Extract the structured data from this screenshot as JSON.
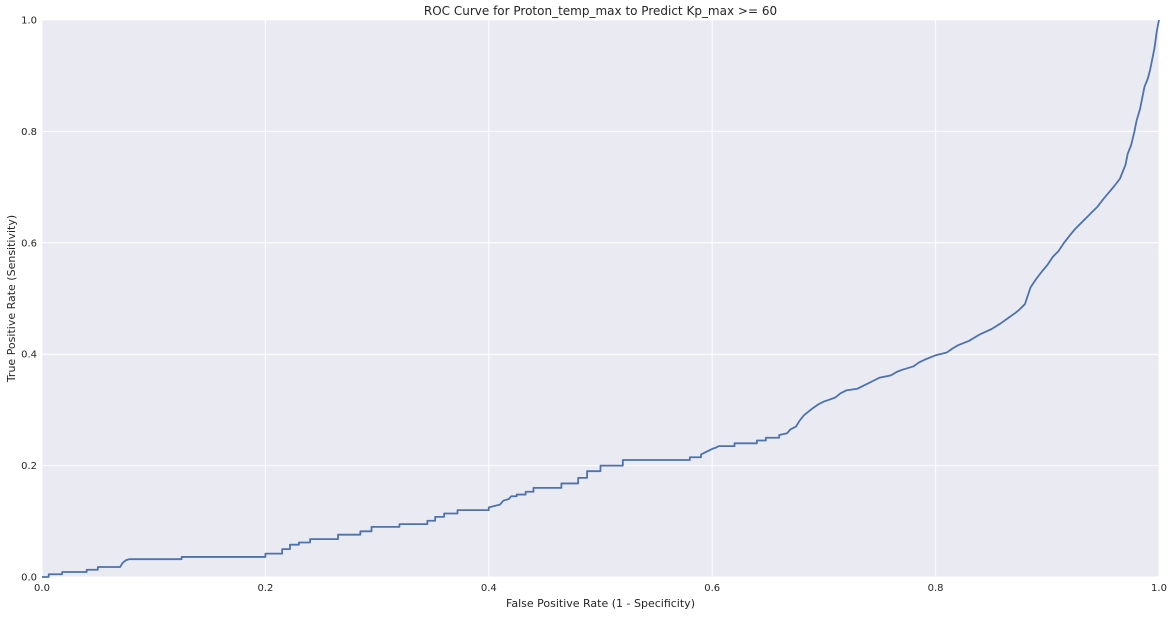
{
  "colors": {
    "plot_background": "#EAEAF2",
    "grid": "#FFFFFF",
    "line": "#4C72B0",
    "text": "#262626"
  },
  "chart_data": {
    "type": "line",
    "title": "ROC Curve for Proton_temp_max to Predict Kp_max >= 60",
    "xlabel": "False Positive Rate (1 - Specificity)",
    "ylabel": "True Positive Rate (Sensitivity)",
    "xlim": [
      0,
      1
    ],
    "ylim": [
      0,
      1
    ],
    "xticks": [
      "0.0",
      "0.2",
      "0.4",
      "0.6",
      "0.8",
      "1.0"
    ],
    "yticks": [
      "0.0",
      "0.2",
      "0.4",
      "0.6",
      "0.8",
      "1.0"
    ],
    "grid": true,
    "series": [
      {
        "x": [
          0.0,
          0.006,
          0.006,
          0.018,
          0.018,
          0.04,
          0.04,
          0.05,
          0.05,
          0.07,
          0.072,
          0.075,
          0.078,
          0.125,
          0.125,
          0.2,
          0.2,
          0.215,
          0.215,
          0.222,
          0.222,
          0.23,
          0.23,
          0.24,
          0.24,
          0.265,
          0.265,
          0.285,
          0.285,
          0.295,
          0.295,
          0.32,
          0.32,
          0.345,
          0.345,
          0.352,
          0.352,
          0.36,
          0.36,
          0.372,
          0.372,
          0.4,
          0.4,
          0.41,
          0.413,
          0.418,
          0.42,
          0.425,
          0.425,
          0.433,
          0.433,
          0.44,
          0.44,
          0.465,
          0.465,
          0.48,
          0.48,
          0.488,
          0.488,
          0.5,
          0.5,
          0.52,
          0.52,
          0.58,
          0.58,
          0.59,
          0.59,
          0.595,
          0.6,
          0.603,
          0.606,
          0.62,
          0.62,
          0.64,
          0.64,
          0.648,
          0.648,
          0.66,
          0.66,
          0.667,
          0.67,
          0.675,
          0.678,
          0.682,
          0.685,
          0.69,
          0.695,
          0.7,
          0.71,
          0.715,
          0.72,
          0.73,
          0.735,
          0.74,
          0.745,
          0.75,
          0.76,
          0.765,
          0.77,
          0.78,
          0.785,
          0.79,
          0.8,
          0.81,
          0.815,
          0.82,
          0.83,
          0.84,
          0.85,
          0.858,
          0.865,
          0.872,
          0.875,
          0.88,
          0.885,
          0.89,
          0.895,
          0.9,
          0.905,
          0.91,
          0.915,
          0.92,
          0.925,
          0.93,
          0.935,
          0.94,
          0.945,
          0.95,
          0.955,
          0.96,
          0.965,
          0.97,
          0.972,
          0.975,
          0.978,
          0.98,
          0.983,
          0.985,
          0.987,
          0.99,
          0.992,
          0.994,
          0.996,
          0.998,
          1.0
        ],
        "y": [
          0.0,
          0.0,
          0.005,
          0.005,
          0.009,
          0.009,
          0.013,
          0.013,
          0.018,
          0.018,
          0.025,
          0.03,
          0.032,
          0.032,
          0.036,
          0.036,
          0.042,
          0.042,
          0.05,
          0.05,
          0.058,
          0.058,
          0.062,
          0.062,
          0.068,
          0.068,
          0.076,
          0.076,
          0.082,
          0.082,
          0.09,
          0.09,
          0.095,
          0.095,
          0.101,
          0.101,
          0.108,
          0.108,
          0.114,
          0.114,
          0.12,
          0.12,
          0.125,
          0.13,
          0.137,
          0.14,
          0.145,
          0.145,
          0.148,
          0.148,
          0.153,
          0.153,
          0.16,
          0.16,
          0.168,
          0.168,
          0.178,
          0.178,
          0.19,
          0.19,
          0.2,
          0.2,
          0.21,
          0.21,
          0.215,
          0.215,
          0.22,
          0.225,
          0.23,
          0.232,
          0.235,
          0.235,
          0.24,
          0.24,
          0.245,
          0.245,
          0.25,
          0.25,
          0.255,
          0.258,
          0.265,
          0.27,
          0.28,
          0.29,
          0.295,
          0.303,
          0.31,
          0.315,
          0.322,
          0.33,
          0.335,
          0.338,
          0.343,
          0.348,
          0.353,
          0.358,
          0.362,
          0.368,
          0.372,
          0.378,
          0.385,
          0.39,
          0.398,
          0.403,
          0.41,
          0.416,
          0.424,
          0.436,
          0.445,
          0.455,
          0.465,
          0.475,
          0.48,
          0.49,
          0.52,
          0.535,
          0.548,
          0.56,
          0.575,
          0.585,
          0.6,
          0.613,
          0.625,
          0.635,
          0.645,
          0.655,
          0.665,
          0.678,
          0.69,
          0.702,
          0.715,
          0.74,
          0.76,
          0.775,
          0.8,
          0.82,
          0.84,
          0.86,
          0.88,
          0.895,
          0.91,
          0.93,
          0.95,
          0.98,
          1.0
        ]
      }
    ]
  }
}
